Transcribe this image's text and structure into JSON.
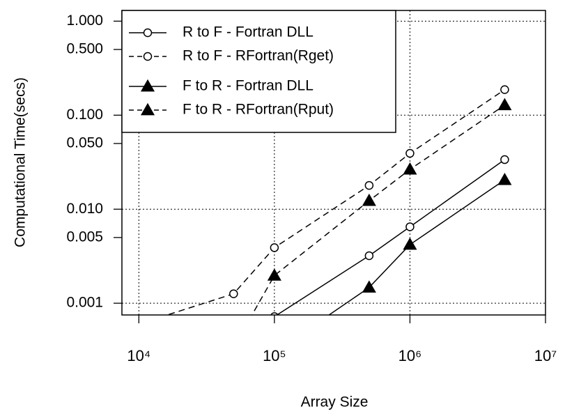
{
  "chart_data": {
    "type": "line",
    "x_label": "Array Size",
    "y_label": "Computational Time(secs)",
    "x_log": true,
    "y_log": true,
    "grid": true,
    "legend": "top-left",
    "x": [
      10000,
      50000,
      100000,
      500000,
      1000000,
      5000000
    ],
    "series": [
      {
        "name": "R to F - Fortran DLL",
        "color": "#000000",
        "linestyle": "solid",
        "marker": "circle-open",
        "values": [
          null,
          null,
          0.00072,
          0.0032,
          0.0065,
          0.0337
        ]
      },
      {
        "name": "R to F - RFortran(Rget)",
        "color": "#000000",
        "linestyle": "dashed",
        "marker": "circle-open",
        "values": [
          0.0006,
          0.00126,
          0.0039,
          0.0179,
          0.0393,
          0.187
        ]
      },
      {
        "name": "F to R - Fortran DLL",
        "color": "#000000",
        "linestyle": "solid",
        "marker": "triangle-filled",
        "values": [
          null,
          null,
          0.0003,
          0.00147,
          0.0042,
          0.0205
        ]
      },
      {
        "name": "F to R - RFortran(Rput)",
        "color": "#000000",
        "linestyle": "dashed",
        "marker": "triangle-filled",
        "values": [
          null,
          0.00034,
          0.00197,
          0.0123,
          0.0265,
          0.128
        ]
      }
    ],
    "xlim": [
      7500,
      10000000
    ],
    "ylim": [
      0.00075,
      1.3
    ],
    "xticks": [
      {
        "value": 10000,
        "label": "10⁴"
      },
      {
        "value": 100000,
        "label": "10⁵"
      },
      {
        "value": 1000000,
        "label": "10⁶"
      },
      {
        "value": 10000000,
        "label": "10⁷"
      }
    ],
    "yticks": [
      {
        "value": 1,
        "label": "1.000"
      },
      {
        "value": 0.5,
        "label": "0.500"
      },
      {
        "value": 0.1,
        "label": "0.100"
      },
      {
        "value": 0.05,
        "label": "0.050"
      },
      {
        "value": 0.01,
        "label": "0.010"
      },
      {
        "value": 0.005,
        "label": "0.005"
      },
      {
        "value": 0.001,
        "label": "0.001"
      }
    ]
  }
}
